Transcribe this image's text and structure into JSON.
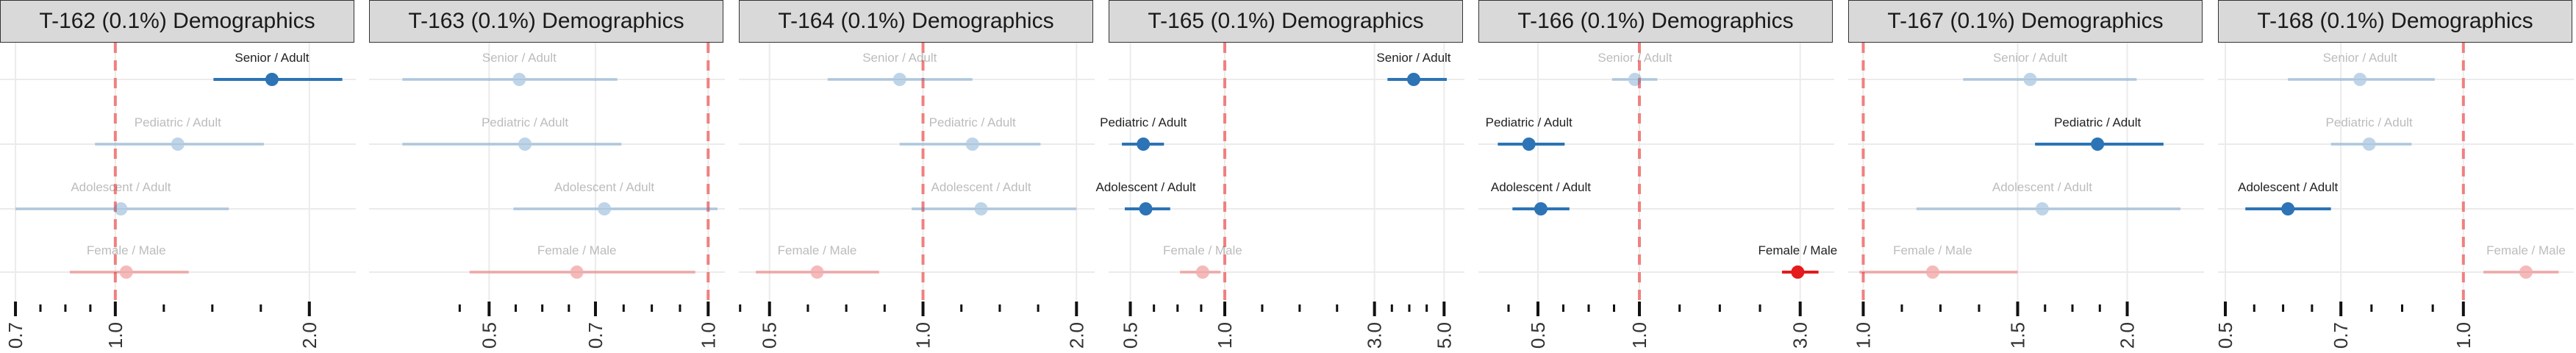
{
  "chart_data": [
    {
      "type": "forest",
      "title": "T-162 (0.1%) Demographics",
      "x_scale": "log",
      "xlim": [
        0.68,
        2.3
      ],
      "reference_line": 1.0,
      "ticks": [
        0.7,
        1.0,
        2.0
      ],
      "tick_labels": [
        "0.7",
        "1.0",
        "2.0"
      ],
      "rows": [
        {
          "label": "Senior / Adult",
          "estimate": 1.75,
          "ci": [
            1.42,
            2.25
          ],
          "significant": true,
          "color": "#2c74b5"
        },
        {
          "label": "Pediatric / Adult",
          "estimate": 1.25,
          "ci": [
            0.93,
            1.7
          ],
          "significant": false,
          "color": "#2c74b5"
        },
        {
          "label": "Adolescent / Adult",
          "estimate": 1.02,
          "ci": [
            0.7,
            1.5
          ],
          "significant": false,
          "color": "#2c74b5"
        },
        {
          "label": "Female / Male",
          "estimate": 1.04,
          "ci": [
            0.85,
            1.3
          ],
          "significant": false,
          "color": "#e41a1c"
        }
      ]
    },
    {
      "type": "forest",
      "title": "T-163 (0.1%) Demographics",
      "x_scale": "log",
      "xlim": [
        0.35,
        1.03
      ],
      "reference_line": 1.0,
      "ticks": [
        0.5,
        0.7,
        1.0
      ],
      "tick_labels": [
        "0.5",
        "0.7",
        "1.0"
      ],
      "rows": [
        {
          "label": "Senior / Adult",
          "estimate": 0.55,
          "ci": [
            0.38,
            0.75
          ],
          "significant": false,
          "color": "#2c74b5"
        },
        {
          "label": "Pediatric / Adult",
          "estimate": 0.56,
          "ci": [
            0.38,
            0.76
          ],
          "significant": false,
          "color": "#2c74b5"
        },
        {
          "label": "Adolescent / Adult",
          "estimate": 0.72,
          "ci": [
            0.54,
            1.03
          ],
          "significant": false,
          "color": "#2c74b5"
        },
        {
          "label": "Female / Male",
          "estimate": 0.66,
          "ci": [
            0.47,
            0.96
          ],
          "significant": false,
          "color": "#e41a1c"
        }
      ]
    },
    {
      "type": "forest",
      "title": "T-164 (0.1%) Demographics",
      "x_scale": "log",
      "xlim": [
        0.45,
        2.1
      ],
      "reference_line": 1.0,
      "ticks": [
        0.5,
        1.0,
        2.0
      ],
      "tick_labels": [
        "0.5",
        "1.0",
        "2.0"
      ],
      "rows": [
        {
          "label": "Senior / Adult",
          "estimate": 0.9,
          "ci": [
            0.65,
            1.25
          ],
          "significant": false,
          "color": "#2c74b5"
        },
        {
          "label": "Pediatric / Adult",
          "estimate": 1.25,
          "ci": [
            0.9,
            1.7
          ],
          "significant": false,
          "color": "#2c74b5"
        },
        {
          "label": "Adolescent / Adult",
          "estimate": 1.3,
          "ci": [
            0.95,
            2.0
          ],
          "significant": false,
          "color": "#2c74b5"
        },
        {
          "label": "Female / Male",
          "estimate": 0.62,
          "ci": [
            0.47,
            0.82
          ],
          "significant": false,
          "color": "#e41a1c"
        }
      ]
    },
    {
      "type": "forest",
      "title": "T-165 (0.1%) Demographics",
      "x_scale": "log",
      "xlim": [
        0.45,
        5.5
      ],
      "reference_line": 1.0,
      "ticks": [
        0.5,
        1.0,
        3.0,
        5.0
      ],
      "tick_labels": [
        "0.5",
        "1.0",
        "3.0",
        "5.0"
      ],
      "rows": [
        {
          "label": "Senior / Adult",
          "estimate": 4.0,
          "ci": [
            3.3,
            5.1
          ],
          "significant": true,
          "color": "#2c74b5"
        },
        {
          "label": "Pediatric / Adult",
          "estimate": 0.55,
          "ci": [
            0.47,
            0.64
          ],
          "significant": true,
          "color": "#2c74b5"
        },
        {
          "label": "Adolescent / Adult",
          "estimate": 0.56,
          "ci": [
            0.48,
            0.67
          ],
          "significant": true,
          "color": "#2c74b5"
        },
        {
          "label": "Female / Male",
          "estimate": 0.85,
          "ci": [
            0.72,
            0.97
          ],
          "significant": false,
          "color": "#e41a1c"
        }
      ]
    },
    {
      "type": "forest",
      "title": "T-166 (0.1%) Demographics",
      "x_scale": "log",
      "xlim": [
        0.35,
        3.6
      ],
      "reference_line": 1.0,
      "ticks": [
        0.5,
        1.0,
        3.0
      ],
      "tick_labels": [
        "0.5",
        "1.0",
        "3.0"
      ],
      "rows": [
        {
          "label": "Senior / Adult",
          "estimate": 0.97,
          "ci": [
            0.83,
            1.13
          ],
          "significant": false,
          "color": "#2c74b5"
        },
        {
          "label": "Pediatric / Adult",
          "estimate": 0.47,
          "ci": [
            0.38,
            0.6
          ],
          "significant": true,
          "color": "#2c74b5"
        },
        {
          "label": "Adolescent / Adult",
          "estimate": 0.51,
          "ci": [
            0.42,
            0.62
          ],
          "significant": true,
          "color": "#2c74b5"
        },
        {
          "label": "Female / Male",
          "estimate": 2.95,
          "ci": [
            2.65,
            3.4
          ],
          "significant": true,
          "color": "#e41a1c"
        }
      ]
    },
    {
      "type": "forest",
      "title": "T-167 (0.1%) Demographics",
      "x_scale": "log",
      "xlim": [
        0.98,
        2.4
      ],
      "reference_line": 1.0,
      "ticks": [
        1.0,
        1.5,
        2.0
      ],
      "tick_labels": [
        "1.0",
        "1.5",
        "2.0"
      ],
      "rows": [
        {
          "label": "Senior / Adult",
          "estimate": 1.55,
          "ci": [
            1.3,
            2.05
          ],
          "significant": false,
          "color": "#2c74b5"
        },
        {
          "label": "Pediatric / Adult",
          "estimate": 1.85,
          "ci": [
            1.57,
            2.2
          ],
          "significant": true,
          "color": "#2c74b5"
        },
        {
          "label": "Adolescent / Adult",
          "estimate": 1.6,
          "ci": [
            1.15,
            2.3
          ],
          "significant": false,
          "color": "#2c74b5"
        },
        {
          "label": "Female / Male",
          "estimate": 1.2,
          "ci": [
            0.99,
            1.5
          ],
          "significant": false,
          "color": "#e41a1c"
        }
      ]
    },
    {
      "type": "forest",
      "title": "T-168 (0.1%) Demographics",
      "x_scale": "log",
      "xlim": [
        0.5,
        1.35
      ],
      "reference_line": 1.0,
      "ticks": [
        0.5,
        0.7,
        1.0
      ],
      "tick_labels": [
        "0.5",
        "0.7",
        "1.0"
      ],
      "rows": [
        {
          "label": "Senior / Adult",
          "estimate": 0.74,
          "ci": [
            0.6,
            0.92
          ],
          "significant": false,
          "color": "#2c74b5"
        },
        {
          "label": "Pediatric / Adult",
          "estimate": 0.76,
          "ci": [
            0.68,
            0.86
          ],
          "significant": false,
          "color": "#2c74b5"
        },
        {
          "label": "Adolescent / Adult",
          "estimate": 0.6,
          "ci": [
            0.53,
            0.68
          ],
          "significant": true,
          "color": "#2c74b5"
        },
        {
          "label": "Female / Male",
          "estimate": 1.2,
          "ci": [
            1.06,
            1.32
          ],
          "significant": false,
          "color": "#e41a1c"
        }
      ]
    }
  ]
}
